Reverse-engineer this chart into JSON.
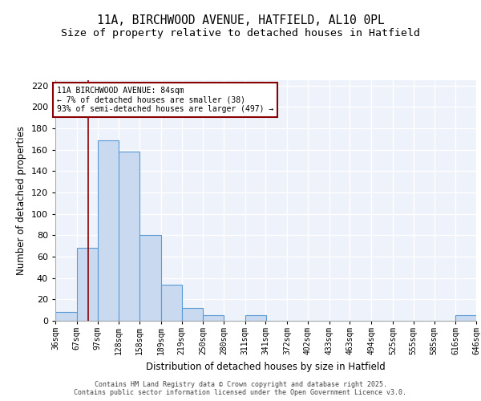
{
  "title1": "11A, BIRCHWOOD AVENUE, HATFIELD, AL10 0PL",
  "title2": "Size of property relative to detached houses in Hatfield",
  "xlabel": "Distribution of detached houses by size in Hatfield",
  "ylabel": "Number of detached properties",
  "bin_edges": [
    36,
    67,
    97,
    128,
    158,
    189,
    219,
    250,
    280,
    311,
    341,
    372,
    402,
    433,
    463,
    494,
    525,
    555,
    585,
    616,
    646
  ],
  "bar_heights": [
    8,
    68,
    169,
    158,
    80,
    34,
    12,
    5,
    0,
    5,
    0,
    0,
    0,
    0,
    0,
    0,
    0,
    0,
    0,
    5
  ],
  "bar_color": "#c8d9f0",
  "bar_edge_color": "#5b9bd5",
  "vline_x": 84,
  "vline_color": "#8b0000",
  "annotation_text": "11A BIRCHWOOD AVENUE: 84sqm\n← 7% of detached houses are smaller (38)\n93% of semi-detached houses are larger (497) →",
  "annotation_box_color": "white",
  "annotation_box_edge_color": "#8b0000",
  "ylim": [
    0,
    225
  ],
  "yticks": [
    0,
    20,
    40,
    60,
    80,
    100,
    120,
    140,
    160,
    180,
    200,
    220
  ],
  "background_color": "#eef2fa",
  "grid_color": "#ffffff",
  "footer_text": "Contains HM Land Registry data © Crown copyright and database right 2025.\nContains public sector information licensed under the Open Government Licence v3.0.",
  "tick_label_fontsize": 7,
  "axis_label_fontsize": 8.5,
  "title_fontsize1": 10.5,
  "title_fontsize2": 9.5,
  "footer_fontsize": 6.0
}
